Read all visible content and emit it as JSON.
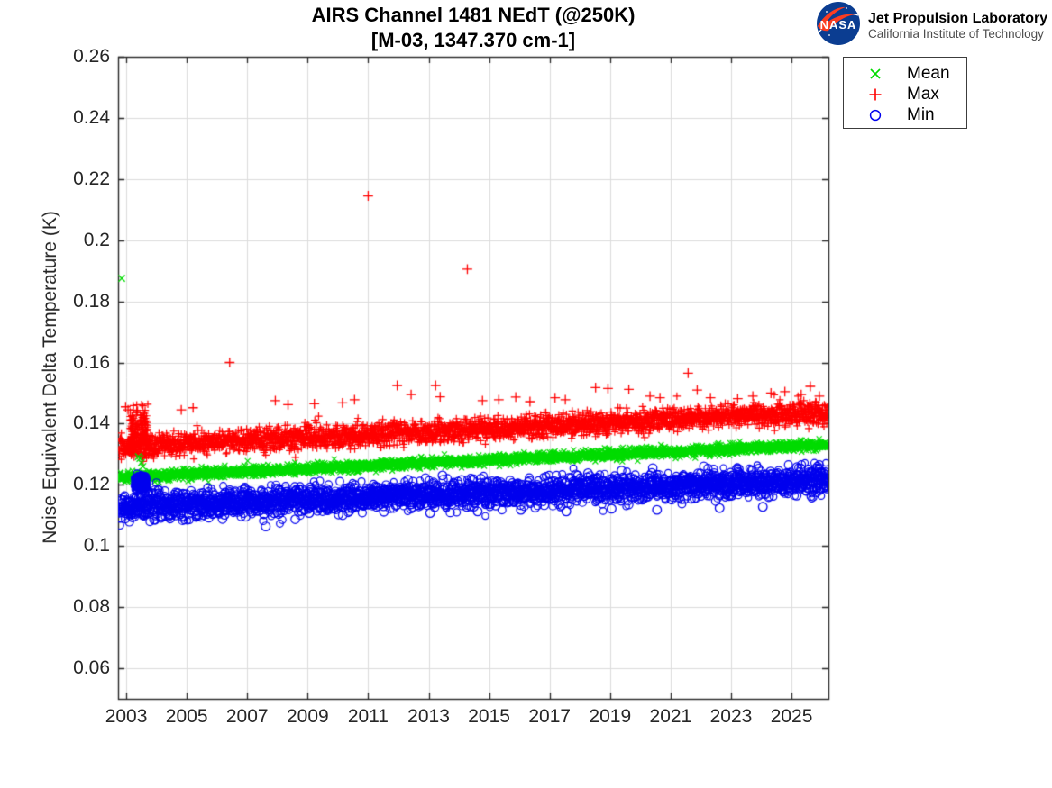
{
  "header": {
    "logo": "nasa-meatball",
    "org_name": "Jet Propulsion Laboratory",
    "org_sub": "California Institute of Technology"
  },
  "chart_data": {
    "type": "scatter",
    "title": "AIRS Channel 1481 NEdT (@250K)",
    "subtitle": "[M-03, 1347.370 cm-1]",
    "xlabel": "",
    "ylabel": "Noise Equivalent Delta Temperature (K)",
    "xlim": [
      2002.73,
      2026.22
    ],
    "ylim": [
      0.05,
      0.26
    ],
    "x_ticks": [
      2003,
      2005,
      2007,
      2009,
      2011,
      2013,
      2015,
      2017,
      2019,
      2021,
      2023,
      2025
    ],
    "x_tick_labels": [
      "2003",
      "2005",
      "2007",
      "2009",
      "2011",
      "2013",
      "2015",
      "2017",
      "2019",
      "2021",
      "2023",
      "2025"
    ],
    "y_ticks": [
      0.06,
      0.08,
      0.1,
      0.12,
      0.14,
      0.16,
      0.18,
      0.2,
      0.22,
      0.24,
      0.26
    ],
    "y_tick_labels": [
      "0.06",
      "0.08",
      "0.1",
      "0.12",
      "0.14",
      "0.16",
      "0.18",
      "0.2",
      "0.22",
      "0.24",
      "0.26"
    ],
    "grid": true,
    "grid_color": "#dcdcdc",
    "axis_color": "#262626",
    "legend": {
      "position": "outside-top-right",
      "entries": [
        {
          "label": "Mean",
          "marker": "x",
          "color": "#00dc00"
        },
        {
          "label": "Max",
          "marker": "plus",
          "color": "#ff0000"
        },
        {
          "label": "Min",
          "marker": "circle",
          "color": "#0000ee"
        }
      ]
    },
    "series": [
      {
        "name": "Max",
        "marker": "plus",
        "color": "#ff0000",
        "seed": 101,
        "band": {
          "n": 3000,
          "t_start": 2002.76,
          "t_end": 2026.2,
          "v_start": 0.1325,
          "v_end": 0.1437,
          "sigma": 0.0018,
          "tail_up": {
            "p": 0.025,
            "scale": 0.0016,
            "max": 0.0055
          }
        },
        "clusters": [
          {
            "t0": 2003.12,
            "t1": 2003.72,
            "center": 0.1375,
            "sigma": 0.0038,
            "n": 140
          }
        ],
        "outliers": [
          [
            2002.98,
            0.1455
          ],
          [
            2003.06,
            0.1445
          ],
          [
            2004.82,
            0.1445
          ],
          [
            2005.21,
            0.1452
          ],
          [
            2006.42,
            0.16
          ],
          [
            2007.93,
            0.1475
          ],
          [
            2008.35,
            0.1462
          ],
          [
            2009.22,
            0.1465
          ],
          [
            2010.15,
            0.1468
          ],
          [
            2010.55,
            0.1478
          ],
          [
            2011.0,
            0.2145
          ],
          [
            2011.96,
            0.1525
          ],
          [
            2012.42,
            0.1495
          ],
          [
            2013.23,
            0.1525
          ],
          [
            2013.38,
            0.1488
          ],
          [
            2014.28,
            0.1905
          ],
          [
            2014.78,
            0.1475
          ],
          [
            2015.32,
            0.1478
          ],
          [
            2015.88,
            0.1487
          ],
          [
            2016.35,
            0.1472
          ],
          [
            2017.18,
            0.1485
          ],
          [
            2017.52,
            0.1478
          ],
          [
            2018.52,
            0.1518
          ],
          [
            2018.93,
            0.1515
          ],
          [
            2019.62,
            0.1512
          ],
          [
            2020.32,
            0.149
          ],
          [
            2020.65,
            0.1485
          ],
          [
            2021.58,
            0.1565
          ],
          [
            2021.88,
            0.151
          ],
          [
            2022.32,
            0.1485
          ],
          [
            2023.22,
            0.1482
          ],
          [
            2023.72,
            0.149
          ],
          [
            2024.32,
            0.15
          ],
          [
            2024.78,
            0.1505
          ],
          [
            2025.32,
            0.1495
          ],
          [
            2025.62,
            0.1522
          ],
          [
            2025.92,
            0.149
          ]
        ]
      },
      {
        "name": "Mean",
        "marker": "x",
        "color": "#00dc00",
        "seed": 202,
        "band": {
          "n": 3000,
          "t_start": 2002.76,
          "t_end": 2026.2,
          "v_start": 0.1225,
          "v_end": 0.1331,
          "sigma": 0.0008
        },
        "clusters": [],
        "outliers": [
          [
            2002.85,
            0.1875
          ],
          [
            2003.4,
            0.1292
          ],
          [
            2003.45,
            0.1286
          ],
          [
            2003.5,
            0.1272
          ],
          [
            2003.55,
            0.126
          ]
        ]
      },
      {
        "name": "Min",
        "marker": "circle",
        "color": "#0000ee",
        "seed": 303,
        "band": {
          "n": 3000,
          "t_start": 2002.76,
          "t_end": 2026.2,
          "v_start": 0.1128,
          "v_end": 0.1216,
          "sigma": 0.0022,
          "tail_down": {
            "p": 0.03,
            "scale": 0.0014,
            "max": 0.005
          }
        },
        "clusters": [
          {
            "t0": 2003.28,
            "t1": 2003.68,
            "center": 0.1205,
            "sigma": 0.0017,
            "n": 100
          }
        ],
        "outliers": [
          [
            2003.92,
            0.1086
          ],
          [
            2004.15,
            0.1092
          ],
          [
            2004.45,
            0.109
          ],
          [
            2005.32,
            0.1098
          ],
          [
            2006.25,
            0.1102
          ],
          [
            2007.55,
            0.1104
          ],
          [
            2009.05,
            0.1108
          ],
          [
            2010.02,
            0.1103
          ],
          [
            2011.52,
            0.1112
          ],
          [
            2013.05,
            0.1108
          ],
          [
            2014.62,
            0.1113
          ],
          [
            2016.05,
            0.1118
          ],
          [
            2017.55,
            0.1113
          ],
          [
            2019.05,
            0.1122
          ],
          [
            2020.55,
            0.1118
          ],
          [
            2022.62,
            0.1124
          ],
          [
            2024.05,
            0.1128
          ]
        ]
      }
    ]
  }
}
